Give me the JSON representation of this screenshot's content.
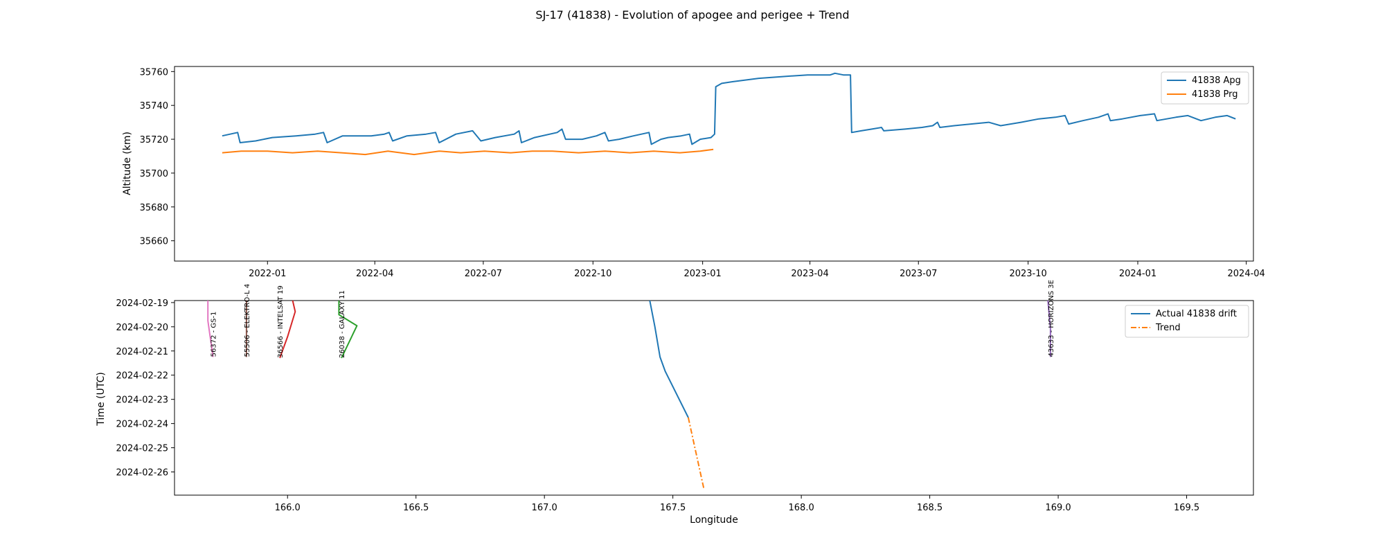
{
  "figure": {
    "title": "SJ-17 (41838) - Evolution of apogee and perigee + Trend"
  },
  "chart_data": [
    {
      "type": "line",
      "ylabel": "Altitude (km)",
      "xlabel": "",
      "xlim": [
        "2021-10-15",
        "2024-04-07"
      ],
      "ylim": [
        35648,
        35763
      ],
      "x_ticks": [
        "2022-01",
        "2022-04",
        "2022-07",
        "2022-10",
        "2023-01",
        "2023-04",
        "2023-07",
        "2023-10",
        "2024-01",
        "2024-04"
      ],
      "y_ticks": [
        35660,
        35680,
        35700,
        35720,
        35740,
        35760
      ],
      "grid": false,
      "legend_position": "top-right",
      "series": [
        {
          "name": "41838 Apg",
          "color": "#1f77b4",
          "points": [
            [
              "2021-11-24",
              35722
            ],
            [
              "2021-12-07",
              35724
            ],
            [
              "2021-12-09",
              35718
            ],
            [
              "2021-12-22",
              35719
            ],
            [
              "2022-01-05",
              35721
            ],
            [
              "2022-01-25",
              35722
            ],
            [
              "2022-02-10",
              35723
            ],
            [
              "2022-02-17",
              35724
            ],
            [
              "2022-02-20",
              35718
            ],
            [
              "2022-03-05",
              35722
            ],
            [
              "2022-03-29",
              35722
            ],
            [
              "2022-04-09",
              35723
            ],
            [
              "2022-04-13",
              35724
            ],
            [
              "2022-04-16",
              35719
            ],
            [
              "2022-04-28",
              35722
            ],
            [
              "2022-05-14",
              35723
            ],
            [
              "2022-05-22",
              35724
            ],
            [
              "2022-05-25",
              35718
            ],
            [
              "2022-06-08",
              35723
            ],
            [
              "2022-06-22",
              35725
            ],
            [
              "2022-06-29",
              35719
            ],
            [
              "2022-07-11",
              35721
            ],
            [
              "2022-07-27",
              35723
            ],
            [
              "2022-07-31",
              35725
            ],
            [
              "2022-08-02",
              35718
            ],
            [
              "2022-08-13",
              35721
            ],
            [
              "2022-09-01",
              35724
            ],
            [
              "2022-09-05",
              35726
            ],
            [
              "2022-09-08",
              35720
            ],
            [
              "2022-09-22",
              35720
            ],
            [
              "2022-10-04",
              35722
            ],
            [
              "2022-10-11",
              35724
            ],
            [
              "2022-10-14",
              35719
            ],
            [
              "2022-10-23",
              35720
            ],
            [
              "2022-11-04",
              35722
            ],
            [
              "2022-11-17",
              35724
            ],
            [
              "2022-11-19",
              35717
            ],
            [
              "2022-11-27",
              35720
            ],
            [
              "2022-12-03",
              35721
            ],
            [
              "2022-12-14",
              35722
            ],
            [
              "2022-12-21",
              35723
            ],
            [
              "2022-12-23",
              35717
            ],
            [
              "2022-12-30",
              35720
            ],
            [
              "2023-01-08",
              35721
            ],
            [
              "2023-01-11",
              35723
            ],
            [
              "2023-01-12",
              35751
            ],
            [
              "2023-01-17",
              35753
            ],
            [
              "2023-01-26",
              35754
            ],
            [
              "2023-02-17",
              35756
            ],
            [
              "2023-03-08",
              35757
            ],
            [
              "2023-03-30",
              35758
            ],
            [
              "2023-04-18",
              35758
            ],
            [
              "2023-04-22",
              35759
            ],
            [
              "2023-04-29",
              35758
            ],
            [
              "2023-05-05",
              35758
            ],
            [
              "2023-05-06",
              35724
            ],
            [
              "2023-05-14",
              35725
            ],
            [
              "2023-05-23",
              35726
            ],
            [
              "2023-05-31",
              35727
            ],
            [
              "2023-06-02",
              35725
            ],
            [
              "2023-06-20",
              35726
            ],
            [
              "2023-07-04",
              35727
            ],
            [
              "2023-07-13",
              35728
            ],
            [
              "2023-07-17",
              35730
            ],
            [
              "2023-07-19",
              35727
            ],
            [
              "2023-07-31",
              35728
            ],
            [
              "2023-08-14",
              35729
            ],
            [
              "2023-08-29",
              35730
            ],
            [
              "2023-09-08",
              35728
            ],
            [
              "2023-09-25",
              35730
            ],
            [
              "2023-10-10",
              35732
            ],
            [
              "2023-10-24",
              35733
            ],
            [
              "2023-11-01",
              35734
            ],
            [
              "2023-11-04",
              35729
            ],
            [
              "2023-11-16",
              35731
            ],
            [
              "2023-11-29",
              35733
            ],
            [
              "2023-12-07",
              35735
            ],
            [
              "2023-12-09",
              35731
            ],
            [
              "2023-12-19",
              35732
            ],
            [
              "2024-01-03",
              35734
            ],
            [
              "2024-01-15",
              35735
            ],
            [
              "2024-01-17",
              35731
            ],
            [
              "2024-02-02",
              35733
            ],
            [
              "2024-02-12",
              35734
            ],
            [
              "2024-02-23",
              35731
            ],
            [
              "2024-03-06",
              35733
            ],
            [
              "2024-03-16",
              35734
            ],
            [
              "2024-03-23",
              35732
            ]
          ]
        },
        {
          "name": "41838 Prg",
          "color": "#ff7f0e",
          "points": [
            [
              "2021-11-24",
              35712
            ],
            [
              "2021-12-10",
              35713
            ],
            [
              "2022-01-01",
              35713
            ],
            [
              "2022-01-22",
              35712
            ],
            [
              "2022-02-12",
              35713
            ],
            [
              "2022-03-04",
              35712
            ],
            [
              "2022-03-24",
              35711
            ],
            [
              "2022-04-12",
              35713
            ],
            [
              "2022-05-04",
              35711
            ],
            [
              "2022-05-25",
              35713
            ],
            [
              "2022-06-12",
              35712
            ],
            [
              "2022-07-02",
              35713
            ],
            [
              "2022-07-24",
              35712
            ],
            [
              "2022-08-11",
              35713
            ],
            [
              "2022-08-28",
              35713
            ],
            [
              "2022-09-19",
              35712
            ],
            [
              "2022-10-11",
              35713
            ],
            [
              "2022-11-01",
              35712
            ],
            [
              "2022-11-21",
              35713
            ],
            [
              "2022-12-13",
              35712
            ],
            [
              "2022-12-30",
              35713
            ],
            [
              "2023-01-10",
              35714
            ]
          ]
        }
      ]
    },
    {
      "type": "line",
      "xlabel": "Longitude",
      "ylabel": "Time (UTC)",
      "xlim": [
        165.56,
        169.76
      ],
      "ylim": [
        "2024-02-26T23:00",
        "2024-02-18T22:00"
      ],
      "x_ticks": [
        166.0,
        166.5,
        167.0,
        167.5,
        168.0,
        168.5,
        169.0,
        169.5
      ],
      "y_ticks": [
        "2024-02-19",
        "2024-02-20",
        "2024-02-21",
        "2024-02-22",
        "2024-02-23",
        "2024-02-24",
        "2024-02-25",
        "2024-02-26"
      ],
      "y_inverted": true,
      "grid": false,
      "legend_position": "top-right",
      "series": [
        {
          "name": "Actual 41838 drift",
          "color": "#1f77b4",
          "style": "solid",
          "points": [
            [
              167.41,
              "2024-02-18T22:00"
            ],
            [
              167.43,
              "2024-02-20T00:00"
            ],
            [
              167.45,
              "2024-02-21T06:00"
            ],
            [
              167.47,
              "2024-02-21T20:00"
            ],
            [
              167.56,
              "2024-02-23T18:00"
            ]
          ]
        },
        {
          "name": "Trend",
          "color": "#ff7f0e",
          "style": "dashdot",
          "points": [
            [
              167.56,
              "2024-02-23T18:00"
            ],
            [
              167.62,
              "2024-02-26T16:00"
            ]
          ]
        },
        {
          "color": "#e377c2",
          "label": "56372 - GS-1",
          "points": [
            [
              165.69,
              "2024-02-18T22:00"
            ],
            [
              165.69,
              "2024-02-19T18:00"
            ],
            [
              165.7,
              "2024-02-20T12:00"
            ],
            [
              165.71,
              "2024-02-21T06:00"
            ]
          ]
        },
        {
          "color": "#8c564b",
          "label": "55506 - ELEKTRO-L 4",
          "points": [
            [
              165.84,
              "2024-02-18T22:00"
            ],
            [
              165.84,
              "2024-02-21T06:00"
            ]
          ]
        },
        {
          "color": "#d62728",
          "label": "36566 - INTELSAT 19",
          "points": [
            [
              166.02,
              "2024-02-18T22:00"
            ],
            [
              166.03,
              "2024-02-19T09:00"
            ],
            [
              166.0,
              "2024-02-20T10:00"
            ],
            [
              165.97,
              "2024-02-21T07:00"
            ]
          ]
        },
        {
          "color": "#2ca02c",
          "label": "26038 - GALAXY 11",
          "points": [
            [
              166.2,
              "2024-02-18T22:00"
            ],
            [
              166.2,
              "2024-02-19T12:00"
            ],
            [
              166.27,
              "2024-02-19T23:00"
            ],
            [
              166.21,
              "2024-02-21T07:00"
            ]
          ]
        },
        {
          "color": "#9467bd",
          "label": "43633 - HORIZONS 3E",
          "points": [
            [
              168.96,
              "2024-02-18T22:00"
            ],
            [
              168.97,
              "2024-02-20T02:00"
            ],
            [
              168.97,
              "2024-02-21T06:00"
            ]
          ]
        }
      ]
    }
  ]
}
